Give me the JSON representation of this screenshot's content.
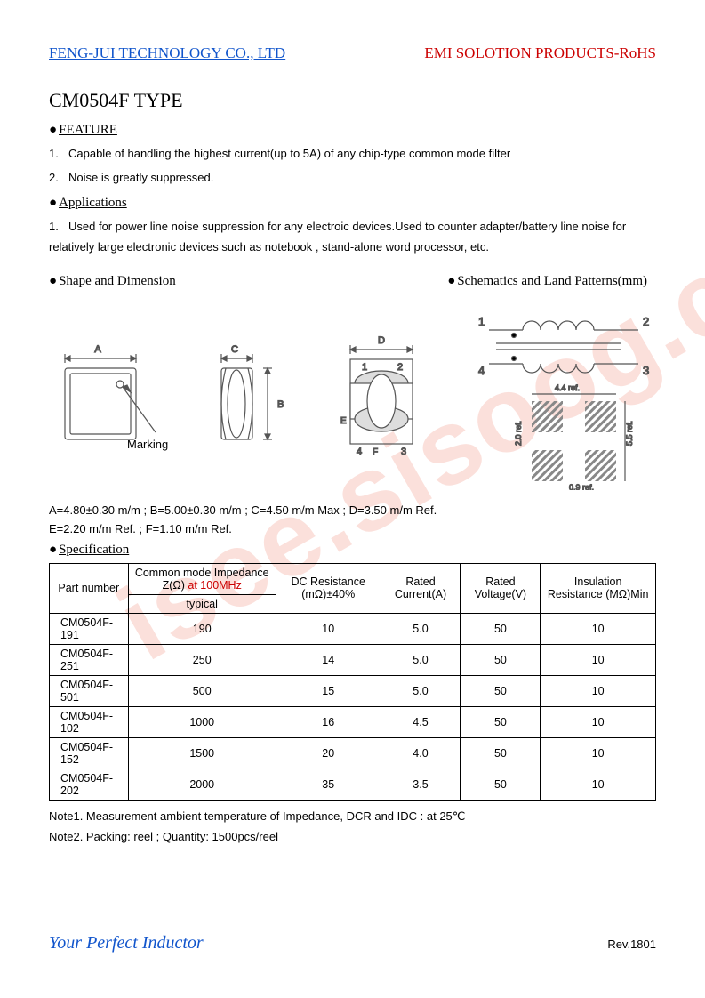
{
  "watermark": "isee.sisoog.com",
  "header": {
    "company": "FENG-JUI TECHNOLOGY CO., LTD",
    "product_line": "EMI SOLOTION PRODUCTS-RoHS"
  },
  "title": "CM0504F TYPE",
  "sections": {
    "feature": "FEATURE",
    "applications": "Applications",
    "shape": "Shape and Dimension",
    "schematics": "Schematics and Land Patterns(mm)",
    "specification": "Specification"
  },
  "features": [
    "Capable of handling the highest current(up to 5A) of any chip-type common mode filter",
    "Noise is greatly suppressed."
  ],
  "applications": [
    "Used for power line noise suppression for any electroic devices.Used to counter adapter/battery line noise for relatively large electronic devices such as notebook , stand-alone word processor, etc."
  ],
  "diagrams": {
    "marking_label": "Marking",
    "dim_labels": {
      "A": "A",
      "B": "B",
      "C": "C",
      "D": "D",
      "E": "E",
      "F": "F"
    },
    "pin_labels": {
      "1": "1",
      "2": "2",
      "3": "3",
      "4": "4"
    },
    "land_refs": {
      "w": "4.4 ref.",
      "h": "5.5 ref.",
      "gap_v": "2.0 ref.",
      "pad": "0.9 ref."
    }
  },
  "dimensions": {
    "line1": "A=4.80±0.30 m/m ; B=5.00±0.30 m/m ; C=4.50 m/m Max ; D=3.50 m/m Ref.",
    "line2": "E=2.20 m/m Ref. ; F=1.10 m/m Ref."
  },
  "spec_table": {
    "columns": [
      "Part number",
      "Common mode Impedance Z(Ω)",
      "DC Resistance (mΩ)±40%",
      "Rated Current(A)",
      "Rated Voltage(V)",
      "Insulation Resistance (MΩ)Min"
    ],
    "impedance_freq": " at 100MHz",
    "impedance_sub": "typical",
    "rows": [
      [
        "CM0504F-191",
        "190",
        "10",
        "5.0",
        "50",
        "10"
      ],
      [
        "CM0504F-251",
        "250",
        "14",
        "5.0",
        "50",
        "10"
      ],
      [
        "CM0504F-501",
        "500",
        "15",
        "5.0",
        "50",
        "10"
      ],
      [
        "CM0504F-102",
        "1000",
        "16",
        "4.5",
        "50",
        "10"
      ],
      [
        "CM0504F-152",
        "1500",
        "20",
        "4.0",
        "50",
        "10"
      ],
      [
        "CM0504F-202",
        "2000",
        "35",
        "3.5",
        "50",
        "10"
      ]
    ]
  },
  "notes": [
    "Note1. Measurement ambient temperature of Impedance, DCR and IDC : at 25℃",
    "Note2. Packing: reel ; Quantity: 1500pcs/reel"
  ],
  "footer": {
    "tagline": "Your Perfect Inductor",
    "rev": "Rev.1801"
  },
  "style": {
    "page_bg": "#ffffff",
    "link_color": "#1155cc",
    "red_color": "#cc0000",
    "text_color": "#000000",
    "watermark_color": "rgba(240,130,110,0.25)",
    "diagram_stroke": "#555555",
    "hatch_fill": "#888888"
  }
}
